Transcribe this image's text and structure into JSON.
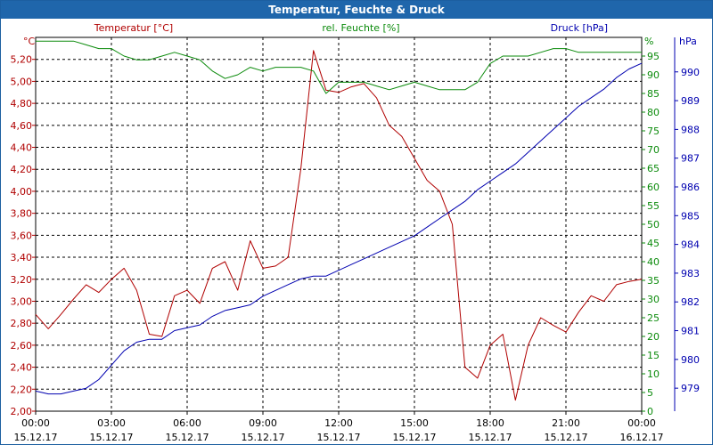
{
  "window": {
    "title": "Temperatur, Feuchte & Druck"
  },
  "colors": {
    "temperature": "#b00000",
    "humidity": "#0a8a0a",
    "pressure": "#0000b0",
    "grid": "#000000",
    "title_bg": "#1f66ab"
  },
  "chart_data": {
    "type": "line",
    "grid": true,
    "series": [
      {
        "name": "Temperatur [°C]",
        "axis": "left",
        "color": "#b00000",
        "x": [
          0,
          0.5,
          1,
          1.5,
          2,
          2.5,
          3,
          3.5,
          4,
          4.5,
          5,
          5.5,
          6,
          6.5,
          7,
          7.5,
          8,
          8.5,
          9,
          9.5,
          10,
          10.5,
          11,
          11.5,
          12,
          12.5,
          13,
          13.5,
          14,
          14.5,
          15,
          15.5,
          16,
          16.5,
          17,
          17.5,
          18,
          18.5,
          19,
          19.5,
          20,
          20.5,
          21,
          21.5,
          22,
          22.5,
          23,
          23.5,
          24
        ],
        "values": [
          2.88,
          2.75,
          2.88,
          3.02,
          3.15,
          3.08,
          3.2,
          3.3,
          3.1,
          2.7,
          2.68,
          3.05,
          3.1,
          2.98,
          3.3,
          3.36,
          3.1,
          3.55,
          3.3,
          3.32,
          3.4,
          4.2,
          5.28,
          4.92,
          4.9,
          4.95,
          4.98,
          4.85,
          4.6,
          4.5,
          4.3,
          4.1,
          4.0,
          3.7,
          2.4,
          2.3,
          2.6,
          2.7,
          2.1,
          2.6,
          2.85,
          2.78,
          2.72,
          2.9,
          3.05,
          3.0,
          3.15,
          3.18,
          3.2
        ]
      },
      {
        "name": "rel. Feuchte [%]",
        "axis": "right1",
        "color": "#0a8a0a",
        "x": [
          0,
          0.5,
          1,
          1.5,
          2,
          2.5,
          3,
          3.5,
          4,
          4.5,
          5,
          5.5,
          6,
          6.5,
          7,
          7.5,
          8,
          8.5,
          9,
          9.5,
          10,
          10.5,
          11,
          11.5,
          12,
          12.5,
          13,
          13.5,
          14,
          14.5,
          15,
          15.5,
          16,
          16.5,
          17,
          17.5,
          18,
          18.5,
          19,
          19.5,
          20,
          20.5,
          21,
          21.5,
          22,
          22.5,
          23,
          23.5,
          24
        ],
        "values": [
          99,
          99,
          99,
          99,
          98,
          97,
          97,
          95,
          94,
          94,
          95,
          96,
          95,
          94,
          91,
          89,
          90,
          92,
          91,
          92,
          92,
          92,
          91,
          85,
          88,
          88,
          88,
          87,
          86,
          87,
          88,
          87,
          86,
          86,
          86,
          88,
          93,
          95,
          95,
          95,
          96,
          97,
          97,
          96,
          96,
          96,
          96,
          96,
          96
        ]
      },
      {
        "name": "Druck [hPa]",
        "axis": "right2",
        "color": "#0000b0",
        "x": [
          0,
          0.5,
          1,
          1.5,
          2,
          2.5,
          3,
          3.5,
          4,
          4.5,
          5,
          5.5,
          6,
          6.5,
          7,
          7.5,
          8,
          8.5,
          9,
          9.5,
          10,
          10.5,
          11,
          11.5,
          12,
          12.5,
          13,
          13.5,
          14,
          14.5,
          15,
          15.5,
          16,
          16.5,
          17,
          17.5,
          18,
          18.5,
          19,
          19.5,
          20,
          20.5,
          21,
          21.5,
          22,
          22.5,
          23,
          23.5,
          24
        ],
        "values": [
          978.9,
          978.8,
          978.8,
          978.9,
          979.0,
          979.3,
          979.8,
          980.3,
          980.6,
          980.7,
          980.7,
          981.0,
          981.1,
          981.2,
          981.5,
          981.7,
          981.8,
          981.9,
          982.2,
          982.4,
          982.6,
          982.8,
          982.9,
          982.9,
          983.1,
          983.3,
          983.5,
          983.7,
          983.9,
          984.1,
          984.3,
          984.6,
          984.9,
          985.2,
          985.5,
          985.9,
          986.2,
          986.5,
          986.8,
          987.2,
          987.6,
          988.0,
          988.4,
          988.8,
          989.1,
          989.4,
          989.8,
          990.1,
          990.3
        ]
      }
    ],
    "xlim": [
      0,
      24
    ],
    "x_ticks": [
      0,
      3,
      6,
      9,
      12,
      15,
      18,
      21,
      24
    ],
    "x_tick_labels": [
      "00:00",
      "03:00",
      "06:00",
      "09:00",
      "12:00",
      "15:00",
      "18:00",
      "21:00",
      "00:00"
    ],
    "x_tick_dates": [
      "15.12.17",
      "15.12.17",
      "15.12.17",
      "15.12.17",
      "15.12.17",
      "15.12.17",
      "15.12.17",
      "15.12.17",
      "16.12.17"
    ],
    "left_axis": {
      "unit": "°C",
      "label": "Temperatur [°C]",
      "ylim": [
        2.0,
        5.4
      ],
      "ticks": [
        2.0,
        2.2,
        2.4,
        2.6,
        2.8,
        3.0,
        3.2,
        3.4,
        3.6,
        3.8,
        4.0,
        4.2,
        4.4,
        4.6,
        4.8,
        5.0,
        5.2
      ],
      "tick_labels": [
        "2,00",
        "2,20",
        "2,40",
        "2,60",
        "2,80",
        "3,00",
        "3,20",
        "3,40",
        "3,60",
        "3,80",
        "4,00",
        "4,20",
        "4,40",
        "4,60",
        "4,80",
        "5,00",
        "5,20"
      ]
    },
    "right_axis_1": {
      "unit": "%",
      "label": "rel. Feuchte [%]",
      "ylim": [
        0,
        100
      ],
      "ticks": [
        0,
        5,
        10,
        15,
        20,
        25,
        30,
        35,
        40,
        45,
        50,
        55,
        60,
        65,
        70,
        75,
        80,
        85,
        90,
        95
      ],
      "tick_labels": [
        "0",
        "5",
        "10",
        "15",
        "20",
        "25",
        "30",
        "35",
        "40",
        "45",
        "50",
        "55",
        "60",
        "65",
        "70",
        "75",
        "80",
        "85",
        "90",
        "95"
      ]
    },
    "right_axis_2": {
      "unit": "hPa",
      "label": "Druck [hPa]",
      "ylim": [
        978.2,
        991.2
      ],
      "ticks": [
        979,
        980,
        981,
        982,
        983,
        984,
        985,
        986,
        987,
        988,
        989,
        990
      ],
      "tick_labels": [
        "979",
        "980",
        "981",
        "982",
        "983",
        "984",
        "985",
        "986",
        "987",
        "988",
        "989",
        "990"
      ]
    }
  }
}
